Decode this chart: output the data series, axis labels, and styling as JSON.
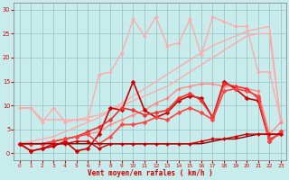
{
  "bg_color": "#c8ecec",
  "grid_color": "#a0c8c8",
  "xlabel": "Vent moyen/en rafales ( km/h )",
  "xlim": [
    -0.5,
    23.5
  ],
  "ylim": [
    -1.5,
    31.5
  ],
  "xticks": [
    0,
    1,
    2,
    3,
    4,
    5,
    6,
    7,
    8,
    9,
    10,
    11,
    12,
    13,
    14,
    15,
    16,
    17,
    18,
    19,
    20,
    21,
    22,
    23
  ],
  "yticks": [
    0,
    5,
    10,
    15,
    20,
    25,
    30
  ],
  "series": [
    {
      "x": [
        0,
        1,
        2,
        3,
        4,
        5,
        6,
        7,
        8,
        9,
        10,
        11,
        12,
        13,
        14,
        15,
        16,
        17,
        18,
        19,
        20,
        21,
        22,
        23
      ],
      "y": [
        9.5,
        9.5,
        7.0,
        7.0,
        7.0,
        7.0,
        7.5,
        8.0,
        9.0,
        10.0,
        11.0,
        12.0,
        13.0,
        14.0,
        15.5,
        17.0,
        18.5,
        20.0,
        21.5,
        23.0,
        24.5,
        25.0,
        25.0,
        6.5
      ],
      "color": "#ffaaaa",
      "lw": 1.0,
      "marker": null,
      "ms": 0
    },
    {
      "x": [
        0,
        1,
        2,
        3,
        4,
        5,
        6,
        7,
        8,
        9,
        10,
        11,
        12,
        13,
        14,
        15,
        16,
        17,
        18,
        19,
        20,
        21,
        22,
        23
      ],
      "y": [
        2.0,
        2.5,
        3.0,
        3.5,
        4.5,
        5.5,
        6.5,
        7.5,
        9.0,
        10.5,
        12.0,
        13.5,
        15.0,
        16.5,
        18.0,
        19.5,
        21.0,
        22.5,
        23.5,
        24.5,
        25.5,
        26.0,
        26.5,
        6.5
      ],
      "color": "#ffaaaa",
      "lw": 1.0,
      "marker": null,
      "ms": 0
    },
    {
      "x": [
        0,
        1,
        2,
        3,
        4,
        5,
        6,
        7,
        8,
        9,
        10,
        11,
        12,
        13,
        14,
        15,
        16,
        17,
        18,
        19,
        20,
        21,
        22,
        23
      ],
      "y": [
        9.5,
        9.5,
        6.5,
        9.5,
        6.5,
        7.0,
        7.0,
        16.5,
        17.0,
        21.0,
        28.0,
        24.5,
        28.5,
        22.5,
        23.0,
        28.0,
        20.5,
        28.5,
        27.5,
        26.5,
        26.5,
        17.0,
        17.0,
        7.0
      ],
      "color": "#ffaaaa",
      "lw": 1.0,
      "marker": "D",
      "ms": 2.0
    },
    {
      "x": [
        0,
        1,
        2,
        3,
        4,
        5,
        6,
        7,
        8,
        9,
        10,
        11,
        12,
        13,
        14,
        15,
        16,
        17,
        18,
        19,
        20,
        21,
        22,
        23
      ],
      "y": [
        2.0,
        2.0,
        2.0,
        2.5,
        3.0,
        3.5,
        4.0,
        4.5,
        6.0,
        7.0,
        8.0,
        9.0,
        10.5,
        11.5,
        13.5,
        14.0,
        14.5,
        14.5,
        14.0,
        14.0,
        13.5,
        13.0,
        4.0,
        6.5
      ],
      "color": "#ff8888",
      "lw": 1.0,
      "marker": "D",
      "ms": 2.0
    },
    {
      "x": [
        0,
        1,
        2,
        3,
        4,
        5,
        6,
        7,
        8,
        9,
        10,
        11,
        12,
        13,
        14,
        15,
        16,
        17,
        18,
        19,
        20,
        21,
        22,
        23
      ],
      "y": [
        2.0,
        0.5,
        1.0,
        1.5,
        2.5,
        0.5,
        1.0,
        4.0,
        9.5,
        9.0,
        15.0,
        9.0,
        7.5,
        8.5,
        11.0,
        12.0,
        11.5,
        7.5,
        15.0,
        13.5,
        11.5,
        11.0,
        2.5,
        4.5
      ],
      "color": "#cc0000",
      "lw": 1.2,
      "marker": "D",
      "ms": 2.5
    },
    {
      "x": [
        0,
        1,
        2,
        3,
        4,
        5,
        6,
        7,
        8,
        9,
        10,
        11,
        12,
        13,
        14,
        15,
        16,
        17,
        18,
        19,
        20,
        21,
        22,
        23
      ],
      "y": [
        2.0,
        2.0,
        2.0,
        2.5,
        3.0,
        3.5,
        4.5,
        5.5,
        7.0,
        9.5,
        9.0,
        8.0,
        8.5,
        9.0,
        11.5,
        12.5,
        11.0,
        7.5,
        14.5,
        14.0,
        13.5,
        11.5,
        3.0,
        4.0
      ],
      "color": "#ee3333",
      "lw": 1.2,
      "marker": "D",
      "ms": 2.5
    },
    {
      "x": [
        0,
        1,
        2,
        3,
        4,
        5,
        6,
        7,
        8,
        9,
        10,
        11,
        12,
        13,
        14,
        15,
        16,
        17,
        18,
        19,
        20,
        21,
        22,
        23
      ],
      "y": [
        2.0,
        2.0,
        2.0,
        2.5,
        3.0,
        3.5,
        4.0,
        2.0,
        3.5,
        6.0,
        6.0,
        6.5,
        7.5,
        7.0,
        8.5,
        9.5,
        8.5,
        7.0,
        13.0,
        13.5,
        13.0,
        12.0,
        2.5,
        4.5
      ],
      "color": "#ff4444",
      "lw": 1.2,
      "marker": "D",
      "ms": 2.5
    },
    {
      "x": [
        0,
        1,
        2,
        3,
        4,
        5,
        6,
        7,
        8,
        9,
        10,
        11,
        12,
        13,
        14,
        15,
        16,
        17,
        18,
        19,
        20,
        21,
        22,
        23
      ],
      "y": [
        2.0,
        2.0,
        2.0,
        2.0,
        2.0,
        2.0,
        2.0,
        2.0,
        2.0,
        2.0,
        2.0,
        2.0,
        2.0,
        2.0,
        2.0,
        2.0,
        2.0,
        2.5,
        3.0,
        3.0,
        3.5,
        4.0,
        4.0,
        4.0
      ],
      "color": "#880000",
      "lw": 1.0,
      "marker": null,
      "ms": 0
    },
    {
      "x": [
        0,
        1,
        2,
        3,
        4,
        5,
        6,
        7,
        8,
        9,
        10,
        11,
        12,
        13,
        14,
        15,
        16,
        17,
        18,
        19,
        20,
        21,
        22,
        23
      ],
      "y": [
        2.0,
        0.5,
        1.0,
        2.0,
        2.0,
        2.5,
        2.5,
        1.0,
        2.0,
        2.0,
        2.0,
        2.0,
        2.0,
        2.0,
        2.0,
        2.0,
        2.5,
        3.0,
        3.0,
        3.5,
        4.0,
        4.0,
        4.0,
        4.0
      ],
      "color": "#cc0000",
      "lw": 1.0,
      "marker": "D",
      "ms": 2.0
    }
  ]
}
